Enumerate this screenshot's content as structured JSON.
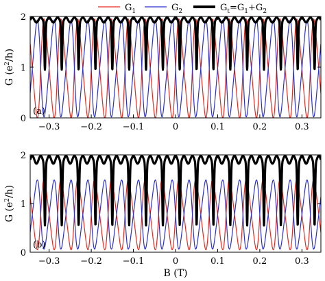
{
  "legend": {
    "items": [
      {
        "key": "g1",
        "label": "G",
        "sub": "1",
        "color": "#e8291f"
      },
      {
        "key": "g2",
        "label": "G",
        "sub": "2",
        "color": "#2a2fd0"
      },
      {
        "key": "gt",
        "label": "G",
        "sub": "t",
        "eq": "=G",
        "sub2": "1",
        "plus": "+G",
        "sub3": "2",
        "color": "#000000"
      }
    ]
  },
  "colors": {
    "g1": "#e8291f",
    "g2": "#2a2fd0",
    "gt": "#000000"
  },
  "chart_data": [
    {
      "type": "line",
      "panel_label": "(a)",
      "xlabel": "",
      "ylabel": "G (e²/h)",
      "ylabel_main": "G (e",
      "ylabel_sup": "2",
      "ylabel_tail": "/h)",
      "xlim": [
        -0.345,
        0.345
      ],
      "ylim": [
        0,
        2
      ],
      "xticks": [
        -0.3,
        -0.2,
        -0.1,
        0,
        0.1,
        0.2,
        0.3
      ],
      "xtick_labels": [
        "−0.3",
        "−0.2",
        "−0.1",
        "0",
        "0.1",
        "0.2",
        "0.3"
      ],
      "yticks": [
        0,
        1,
        2
      ],
      "ytick_labels": [
        "0",
        "1",
        "2"
      ],
      "period": 0.04,
      "series": [
        {
          "name": "G₁",
          "key": "g1",
          "min_y": 0.0,
          "max_y": 1.95
        },
        {
          "name": "G₂",
          "key": "g2",
          "min_y": 0.0,
          "max_y": 1.95
        },
        {
          "name": "Gt=G₁+G₂",
          "key": "gt",
          "baseline_y": 1.88,
          "peak_y": 1.98,
          "dip_y": 0.95
        }
      ]
    },
    {
      "type": "line",
      "panel_label": "(b)",
      "xlabel": "B (T)",
      "ylabel": "G (e²/h)",
      "ylabel_main": "G (e",
      "ylabel_sup": "2",
      "ylabel_tail": "/h)",
      "xlim": [
        -0.345,
        0.345
      ],
      "ylim": [
        0,
        2
      ],
      "xticks": [
        -0.3,
        -0.2,
        -0.1,
        0,
        0.1,
        0.2,
        0.3
      ],
      "xtick_labels": [
        "−0.3",
        "−0.2",
        "−0.1",
        "0",
        "0.1",
        "0.2",
        "0.3"
      ],
      "yticks": [
        0,
        1,
        2
      ],
      "ytick_labels": [
        "0",
        "1",
        "2"
      ],
      "period": 0.04,
      "series": [
        {
          "name": "G₁",
          "key": "g1",
          "min_y": 0.05,
          "max_y": 1.5
        },
        {
          "name": "G₂",
          "key": "g2",
          "min_y": 0.05,
          "max_y": 1.5
        },
        {
          "name": "Gt=G₁+G₂",
          "key": "gt",
          "baseline_y": 1.82,
          "peak_y": 1.98,
          "dip_y": 0.55
        }
      ]
    }
  ]
}
